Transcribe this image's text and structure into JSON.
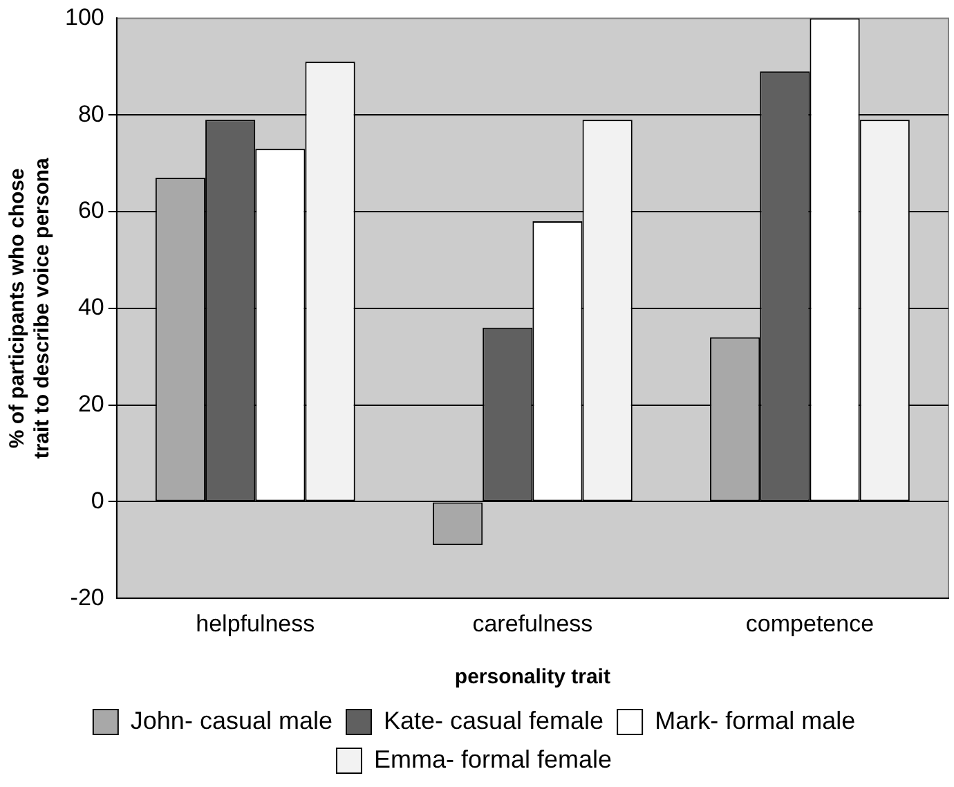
{
  "chart_data": {
    "type": "bar",
    "xlabel": "personality trait",
    "ylabel": "% of participants who chose\ntrait to describe voice persona",
    "categories": [
      "helpfulness",
      "carefulness",
      "competence"
    ],
    "series": [
      {
        "name": "John- casual male",
        "color": "#a8a8a8",
        "values": [
          67,
          -9,
          34
        ]
      },
      {
        "name": "Kate- casual female",
        "color": "#606060",
        "values": [
          79,
          36,
          89
        ]
      },
      {
        "name": "Mark- formal male",
        "color": "#ffffff",
        "values": [
          73,
          58,
          100
        ]
      },
      {
        "name": "Emma- formal female",
        "color": "#f2f2f2",
        "values": [
          91,
          79,
          79
        ]
      }
    ],
    "ylim": [
      -20,
      100
    ],
    "yticks": [
      -20,
      0,
      20,
      40,
      60,
      80,
      100
    ],
    "grid": "y",
    "legend": "bottom"
  }
}
